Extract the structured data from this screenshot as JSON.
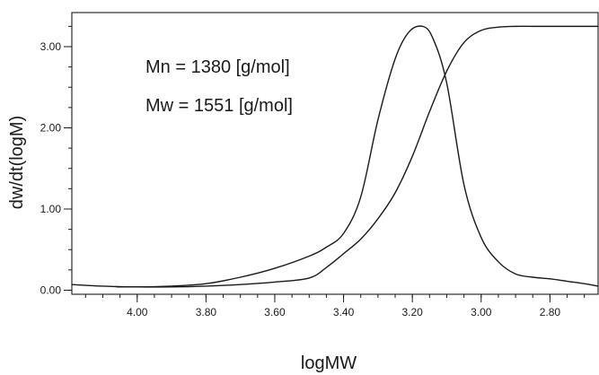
{
  "chart_data": {
    "type": "line",
    "xlabel": "logMW",
    "ylabel": "dw/dt(logM)",
    "x_reversed": true,
    "xlim": [
      4.19,
      2.66
    ],
    "ylim": [
      -0.05,
      3.42
    ],
    "x_ticks": [
      {
        "value": 4.0,
        "label": "4.00"
      },
      {
        "value": 3.8,
        "label": "3.80"
      },
      {
        "value": 3.6,
        "label": "3.60"
      },
      {
        "value": 3.4,
        "label": "3.40"
      },
      {
        "value": 3.2,
        "label": "3.20"
      },
      {
        "value": 3.0,
        "label": "3.00"
      },
      {
        "value": 2.8,
        "label": "2.80"
      }
    ],
    "y_ticks": [
      {
        "value": 0.0,
        "label": "0.00"
      },
      {
        "value": 1.0,
        "label": "1.00"
      },
      {
        "value": 2.0,
        "label": "2.00"
      },
      {
        "value": 3.0,
        "label": "3.00"
      }
    ],
    "grid": false,
    "annotations": [
      "Mn = 1380 [g/mol]",
      "Mw = 1551 [g/mol]"
    ],
    "series": [
      {
        "kind": "distribution",
        "x": [
          4.19,
          4.1,
          4.0,
          3.9,
          3.8,
          3.7,
          3.6,
          3.5,
          3.45,
          3.4,
          3.35,
          3.3,
          3.25,
          3.21,
          3.17,
          3.14,
          3.1,
          3.05,
          3.0,
          2.95,
          2.9,
          2.85,
          2.8,
          2.75,
          2.7,
          2.66
        ],
        "y": [
          0.07,
          0.05,
          0.04,
          0.05,
          0.08,
          0.16,
          0.27,
          0.42,
          0.53,
          0.7,
          1.15,
          2.1,
          2.85,
          3.18,
          3.25,
          3.1,
          2.55,
          1.3,
          0.65,
          0.35,
          0.2,
          0.16,
          0.14,
          0.11,
          0.08,
          0.05
        ]
      },
      {
        "kind": "cumulative",
        "x": [
          4.06,
          4.0,
          3.9,
          3.8,
          3.7,
          3.6,
          3.5,
          3.45,
          3.4,
          3.35,
          3.3,
          3.25,
          3.2,
          3.15,
          3.1,
          3.05,
          3.0,
          2.95,
          2.9,
          2.85,
          2.8,
          2.75,
          2.66
        ],
        "y": [
          0.04,
          0.04,
          0.04,
          0.05,
          0.07,
          0.1,
          0.15,
          0.28,
          0.45,
          0.63,
          0.88,
          1.2,
          1.65,
          2.2,
          2.7,
          3.05,
          3.2,
          3.24,
          3.25,
          3.25,
          3.25,
          3.25,
          3.25
        ]
      }
    ]
  }
}
